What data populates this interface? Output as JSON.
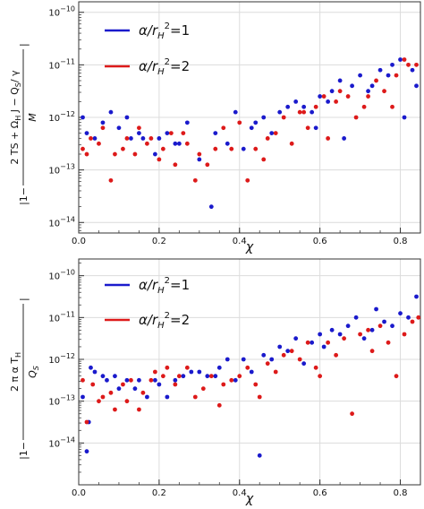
{
  "charts": [
    {
      "chart_data": {
        "type": "scatter",
        "xlabel": "χ",
        "ylabel_parts": {
          "prefix": "|1−",
          "numerator": "2 TS + Ω",
          "num_sub": "H",
          "num_rest": " J − Q",
          "num_sub2": "S",
          "num_tail": "/ γ",
          "denominator": "M",
          "suffix": "|"
        },
        "xlim": [
          0.0,
          0.85
        ],
        "ylim_log10": [
          -14.2,
          -9.8
        ],
        "xticks": [
          "0.0",
          "0.2",
          "0.4",
          "0.6",
          "0.8"
        ],
        "yticks": [
          {
            "base": "10",
            "exp": "−10"
          },
          {
            "base": "10",
            "exp": "−11"
          },
          {
            "base": "10",
            "exp": "−12"
          },
          {
            "base": "10",
            "exp": "−13"
          },
          {
            "base": "10",
            "exp": "−14"
          }
        ],
        "grid": true,
        "legend_position": "top-left",
        "series": [
          {
            "name": "α/r_H²=1",
            "label_text": "α/r",
            "label_sub": "H",
            "label_sup": "2",
            "label_tail": "=1",
            "color": "#1a1acc",
            "points": [
              [
                0.01,
                -12.0
              ],
              [
                0.02,
                -12.3
              ],
              [
                0.04,
                -12.4
              ],
              [
                0.06,
                -12.1
              ],
              [
                0.08,
                -11.9
              ],
              [
                0.1,
                -12.2
              ],
              [
                0.12,
                -12.0
              ],
              [
                0.13,
                -12.4
              ],
              [
                0.15,
                -12.3
              ],
              [
                0.16,
                -12.4
              ],
              [
                0.19,
                -12.7
              ],
              [
                0.2,
                -12.4
              ],
              [
                0.22,
                -12.3
              ],
              [
                0.24,
                -12.5
              ],
              [
                0.25,
                -12.5
              ],
              [
                0.27,
                -12.1
              ],
              [
                0.3,
                -12.8
              ],
              [
                0.33,
                -13.7
              ],
              [
                0.34,
                -12.3
              ],
              [
                0.37,
                -12.5
              ],
              [
                0.39,
                -11.9
              ],
              [
                0.41,
                -12.6
              ],
              [
                0.43,
                -12.2
              ],
              [
                0.44,
                -12.1
              ],
              [
                0.46,
                -12.0
              ],
              [
                0.48,
                -12.3
              ],
              [
                0.5,
                -11.9
              ],
              [
                0.52,
                -11.8
              ],
              [
                0.54,
                -11.7
              ],
              [
                0.56,
                -11.8
              ],
              [
                0.58,
                -11.9
              ],
              [
                0.59,
                -12.2
              ],
              [
                0.6,
                -11.6
              ],
              [
                0.62,
                -11.7
              ],
              [
                0.63,
                -11.5
              ],
              [
                0.65,
                -11.3
              ],
              [
                0.66,
                -12.4
              ],
              [
                0.68,
                -11.4
              ],
              [
                0.7,
                -11.2
              ],
              [
                0.72,
                -11.5
              ],
              [
                0.73,
                -11.4
              ],
              [
                0.75,
                -11.1
              ],
              [
                0.77,
                -11.2
              ],
              [
                0.78,
                -11.0
              ],
              [
                0.8,
                -10.9
              ],
              [
                0.81,
                -12.0
              ],
              [
                0.83,
                -11.1
              ],
              [
                0.84,
                -11.4
              ]
            ]
          },
          {
            "name": "α/r_H²=2",
            "label_text": "α/r",
            "label_sub": "H",
            "label_sup": "2",
            "label_tail": "=2",
            "color": "#dd1a1a",
            "points": [
              [
                0.01,
                -12.6
              ],
              [
                0.02,
                -12.7
              ],
              [
                0.03,
                -12.4
              ],
              [
                0.05,
                -12.5
              ],
              [
                0.06,
                -12.2
              ],
              [
                0.08,
                -13.2
              ],
              [
                0.09,
                -12.7
              ],
              [
                0.11,
                -12.6
              ],
              [
                0.12,
                -12.4
              ],
              [
                0.14,
                -12.7
              ],
              [
                0.15,
                -12.2
              ],
              [
                0.17,
                -12.5
              ],
              [
                0.18,
                -12.4
              ],
              [
                0.2,
                -12.8
              ],
              [
                0.21,
                -12.6
              ],
              [
                0.23,
                -12.3
              ],
              [
                0.24,
                -12.9
              ],
              [
                0.26,
                -12.3
              ],
              [
                0.27,
                -12.5
              ],
              [
                0.29,
                -13.2
              ],
              [
                0.3,
                -12.7
              ],
              [
                0.32,
                -12.9
              ],
              [
                0.34,
                -12.6
              ],
              [
                0.36,
                -12.2
              ],
              [
                0.38,
                -12.6
              ],
              [
                0.4,
                -12.1
              ],
              [
                0.42,
                -13.2
              ],
              [
                0.44,
                -12.6
              ],
              [
                0.46,
                -12.8
              ],
              [
                0.47,
                -12.4
              ],
              [
                0.49,
                -12.3
              ],
              [
                0.51,
                -12.0
              ],
              [
                0.53,
                -12.5
              ],
              [
                0.55,
                -11.9
              ],
              [
                0.56,
                -11.9
              ],
              [
                0.57,
                -12.2
              ],
              [
                0.59,
                -11.8
              ],
              [
                0.61,
                -11.6
              ],
              [
                0.62,
                -12.4
              ],
              [
                0.64,
                -11.7
              ],
              [
                0.65,
                -11.5
              ],
              [
                0.67,
                -11.6
              ],
              [
                0.69,
                -12.0
              ],
              [
                0.71,
                -11.8
              ],
              [
                0.72,
                -11.6
              ],
              [
                0.74,
                -11.3
              ],
              [
                0.76,
                -11.5
              ],
              [
                0.78,
                -11.8
              ],
              [
                0.79,
                -11.2
              ],
              [
                0.81,
                -10.9
              ],
              [
                0.82,
                -11.0
              ],
              [
                0.84,
                -11.0
              ]
            ]
          }
        ]
      }
    },
    {
      "chart_data": {
        "type": "scatter",
        "xlabel": "χ",
        "ylabel_parts": {
          "prefix": "|1−",
          "numerator": "2 π α T",
          "num_sub": "H",
          "denominator": "Q",
          "den_sub": "S",
          "suffix": "|"
        },
        "xlim": [
          0.0,
          0.85
        ],
        "ylim_log10": [
          -15.0,
          -9.6
        ],
        "xticks": [
          "0.0",
          "0.2",
          "0.4",
          "0.6",
          "0.8"
        ],
        "yticks": [
          {
            "base": "10",
            "exp": "−10"
          },
          {
            "base": "10",
            "exp": "−11"
          },
          {
            "base": "10",
            "exp": "−12"
          },
          {
            "base": "10",
            "exp": "−13"
          },
          {
            "base": "10",
            "exp": "−14"
          }
        ],
        "grid": true,
        "legend_position": "top-left",
        "series": [
          {
            "name": "α/r_H²=1",
            "label_text": "α/r",
            "label_sub": "H",
            "label_sup": "2",
            "label_tail": "=1",
            "color": "#1a1acc",
            "points": [
              [
                0.01,
                -12.9
              ],
              [
                0.02,
                -14.2
              ],
              [
                0.025,
                -13.5
              ],
              [
                0.03,
                -12.2
              ],
              [
                0.04,
                -12.3
              ],
              [
                0.06,
                -12.4
              ],
              [
                0.07,
                -12.5
              ],
              [
                0.09,
                -12.4
              ],
              [
                0.1,
                -12.7
              ],
              [
                0.12,
                -12.5
              ],
              [
                0.14,
                -12.7
              ],
              [
                0.15,
                -12.5
              ],
              [
                0.17,
                -12.9
              ],
              [
                0.19,
                -12.5
              ],
              [
                0.2,
                -12.6
              ],
              [
                0.22,
                -12.9
              ],
              [
                0.24,
                -12.5
              ],
              [
                0.26,
                -12.4
              ],
              [
                0.28,
                -12.3
              ],
              [
                0.3,
                -12.3
              ],
              [
                0.32,
                -12.4
              ],
              [
                0.34,
                -12.4
              ],
              [
                0.35,
                -12.2
              ],
              [
                0.37,
                -12.0
              ],
              [
                0.39,
                -12.5
              ],
              [
                0.41,
                -12.0
              ],
              [
                0.43,
                -12.3
              ],
              [
                0.45,
                -14.3
              ],
              [
                0.46,
                -11.9
              ],
              [
                0.48,
                -12.0
              ],
              [
                0.5,
                -11.7
              ],
              [
                0.52,
                -11.8
              ],
              [
                0.54,
                -11.5
              ],
              [
                0.56,
                -12.1
              ],
              [
                0.58,
                -11.6
              ],
              [
                0.6,
                -11.4
              ],
              [
                0.61,
                -11.7
              ],
              [
                0.63,
                -11.3
              ],
              [
                0.65,
                -11.4
              ],
              [
                0.67,
                -11.2
              ],
              [
                0.69,
                -11.0
              ],
              [
                0.71,
                -11.5
              ],
              [
                0.73,
                -11.3
              ],
              [
                0.74,
                -10.8
              ],
              [
                0.76,
                -11.1
              ],
              [
                0.78,
                -11.2
              ],
              [
                0.8,
                -10.9
              ],
              [
                0.82,
                -11.0
              ],
              [
                0.84,
                -10.5
              ]
            ]
          },
          {
            "name": "α/r_H²=2",
            "label_text": "α/r",
            "label_sub": "H",
            "label_sup": "2",
            "label_tail": "=2",
            "color": "#dd1a1a",
            "points": [
              [
                0.01,
                -12.5
              ],
              [
                0.02,
                -13.5
              ],
              [
                0.035,
                -12.6
              ],
              [
                0.05,
                -13.0
              ],
              [
                0.06,
                -12.9
              ],
              [
                0.08,
                -12.8
              ],
              [
                0.09,
                -13.2
              ],
              [
                0.11,
                -12.6
              ],
              [
                0.12,
                -13.0
              ],
              [
                0.13,
                -12.5
              ],
              [
                0.15,
                -13.2
              ],
              [
                0.16,
                -12.8
              ],
              [
                0.18,
                -12.5
              ],
              [
                0.19,
                -12.3
              ],
              [
                0.21,
                -12.4
              ],
              [
                0.22,
                -12.2
              ],
              [
                0.24,
                -12.6
              ],
              [
                0.25,
                -12.4
              ],
              [
                0.27,
                -12.2
              ],
              [
                0.29,
                -12.9
              ],
              [
                0.31,
                -12.7
              ],
              [
                0.33,
                -12.4
              ],
              [
                0.35,
                -13.1
              ],
              [
                0.36,
                -12.6
              ],
              [
                0.38,
                -12.5
              ],
              [
                0.4,
                -12.4
              ],
              [
                0.42,
                -12.2
              ],
              [
                0.44,
                -12.6
              ],
              [
                0.45,
                -12.9
              ],
              [
                0.47,
                -12.1
              ],
              [
                0.49,
                -12.3
              ],
              [
                0.51,
                -11.9
              ],
              [
                0.53,
                -11.8
              ],
              [
                0.55,
                -12.0
              ],
              [
                0.57,
                -11.6
              ],
              [
                0.59,
                -12.2
              ],
              [
                0.6,
                -12.4
              ],
              [
                0.62,
                -11.6
              ],
              [
                0.64,
                -11.9
              ],
              [
                0.66,
                -11.5
              ],
              [
                0.68,
                -13.3
              ],
              [
                0.7,
                -11.4
              ],
              [
                0.72,
                -11.3
              ],
              [
                0.73,
                -11.8
              ],
              [
                0.75,
                -11.2
              ],
              [
                0.77,
                -11.6
              ],
              [
                0.79,
                -12.4
              ],
              [
                0.81,
                -11.4
              ],
              [
                0.83,
                -11.1
              ],
              [
                0.845,
                -11.0
              ]
            ]
          }
        ]
      }
    }
  ]
}
